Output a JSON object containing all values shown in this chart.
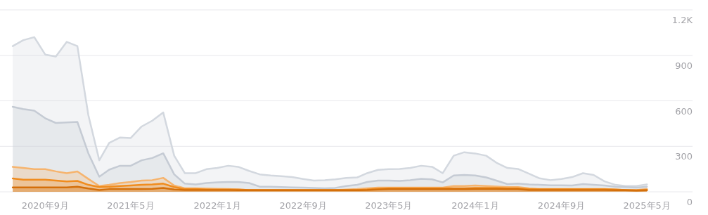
{
  "chart_data": {
    "type": "area",
    "x": [
      "2020-06",
      "2020-07",
      "2020-08",
      "2020-09",
      "2020-10",
      "2020-11",
      "2020-12",
      "2021-01",
      "2021-02",
      "2021-03",
      "2021-04",
      "2021-05",
      "2021-06",
      "2021-07",
      "2021-08",
      "2021-09",
      "2021-10",
      "2021-11",
      "2021-12",
      "2022-01",
      "2022-02",
      "2022-03",
      "2022-04",
      "2022-05",
      "2022-06",
      "2022-07",
      "2022-08",
      "2022-09",
      "2022-10",
      "2022-11",
      "2022-12",
      "2023-01",
      "2023-02",
      "2023-03",
      "2023-04",
      "2023-05",
      "2023-06",
      "2023-07",
      "2023-08",
      "2023-09",
      "2023-10",
      "2023-11",
      "2023-12",
      "2024-01",
      "2024-02",
      "2024-03",
      "2024-04",
      "2024-05",
      "2024-06",
      "2024-07",
      "2024-08",
      "2024-09",
      "2024-10",
      "2024-11",
      "2024-12",
      "2025-01",
      "2025-02",
      "2025-03",
      "2025-04",
      "2025-05"
    ],
    "series": [
      {
        "color": "#d3d8df",
        "values": [
          961,
          1000,
          1020,
          905,
          892,
          989,
          961,
          506,
          208,
          323,
          358,
          355,
          431,
          469,
          523,
          238,
          123,
          123,
          149,
          158,
          172,
          165,
          138,
          115,
          108,
          103,
          97,
          85,
          74,
          77,
          82,
          92,
          95,
          123,
          145,
          149,
          151,
          158,
          172,
          165,
          123,
          238,
          261,
          253,
          238,
          192,
          157,
          151,
          120,
          89,
          77,
          85,
          97,
          123,
          111,
          69,
          46,
          38,
          38,
          49
        ]
      },
      {
        "color": "#c5cbd4",
        "values": [
          561,
          546,
          535,
          485,
          454,
          458,
          461,
          254,
          100,
          146,
          172,
          172,
          208,
          223,
          254,
          115,
          54,
          49,
          58,
          62,
          65,
          65,
          58,
          34,
          34,
          31,
          29,
          28,
          25,
          23,
          26,
          38,
          46,
          65,
          74,
          74,
          72,
          77,
          86,
          82,
          62,
          108,
          111,
          108,
          95,
          74,
          51,
          54,
          49,
          46,
          43,
          43,
          42,
          51,
          46,
          42,
          34,
          31,
          28,
          34
        ]
      },
      {
        "color": "#f6b46e",
        "values": [
          164,
          157,
          149,
          149,
          135,
          123,
          134,
          85,
          38,
          46,
          58,
          65,
          74,
          77,
          92,
          42,
          23,
          23,
          22,
          20,
          18,
          15,
          12,
          12,
          12,
          12,
          12,
          12,
          12,
          12,
          12,
          15,
          18,
          23,
          28,
          28,
          28,
          28,
          28,
          28,
          28,
          38,
          38,
          42,
          38,
          35,
          31,
          31,
          23,
          18,
          18,
          18,
          18,
          18,
          18,
          18,
          15,
          12,
          12,
          18
        ]
      },
      {
        "color": "#f08c1e",
        "values": [
          88,
          80,
          80,
          80,
          74,
          68,
          72,
          46,
          31,
          34,
          38,
          42,
          46,
          49,
          54,
          31,
          18,
          18,
          15,
          15,
          15,
          15,
          12,
          12,
          12,
          12,
          12,
          12,
          12,
          12,
          12,
          12,
          12,
          15,
          20,
          23,
          23,
          23,
          23,
          23,
          23,
          23,
          23,
          25,
          25,
          25,
          23,
          23,
          17,
          17,
          17,
          17,
          17,
          17,
          17,
          17,
          15,
          12,
          10,
          12
        ]
      },
      {
        "color": "#d46f0a",
        "values": [
          29,
          29,
          29,
          29,
          29,
          29,
          34,
          22,
          12,
          18,
          18,
          18,
          18,
          20,
          25,
          15,
          12,
          12,
          12,
          12,
          12,
          11,
          11,
          11,
          11,
          11,
          11,
          11,
          11,
          11,
          11,
          11,
          11,
          12,
          15,
          17,
          17,
          17,
          17,
          17,
          17,
          17,
          17,
          18,
          18,
          18,
          17,
          17,
          12,
          12,
          12,
          12,
          12,
          12,
          12,
          12,
          11,
          10,
          8,
          11
        ]
      }
    ],
    "xlim": [
      "2020-04-26",
      "2025-09-07"
    ],
    "xticks": [
      {
        "value": "2020-09",
        "label": "2020年9月"
      },
      {
        "value": "2021-05",
        "label": "2021年5月"
      },
      {
        "value": "2022-01",
        "label": "2022年1月"
      },
      {
        "value": "2022-09",
        "label": "2022年9月"
      },
      {
        "value": "2023-05",
        "label": "2023年5月"
      },
      {
        "value": "2024-01",
        "label": "2024年1月"
      },
      {
        "value": "2024-09",
        "label": "2024年9月"
      },
      {
        "value": "2025-05",
        "label": "2025年5月"
      }
    ],
    "ylim": [
      0,
      1200
    ],
    "yticks": [
      0,
      300,
      600,
      900,
      {
        "value": 1200,
        "label": "1.2K"
      }
    ],
    "grid": "y"
  }
}
